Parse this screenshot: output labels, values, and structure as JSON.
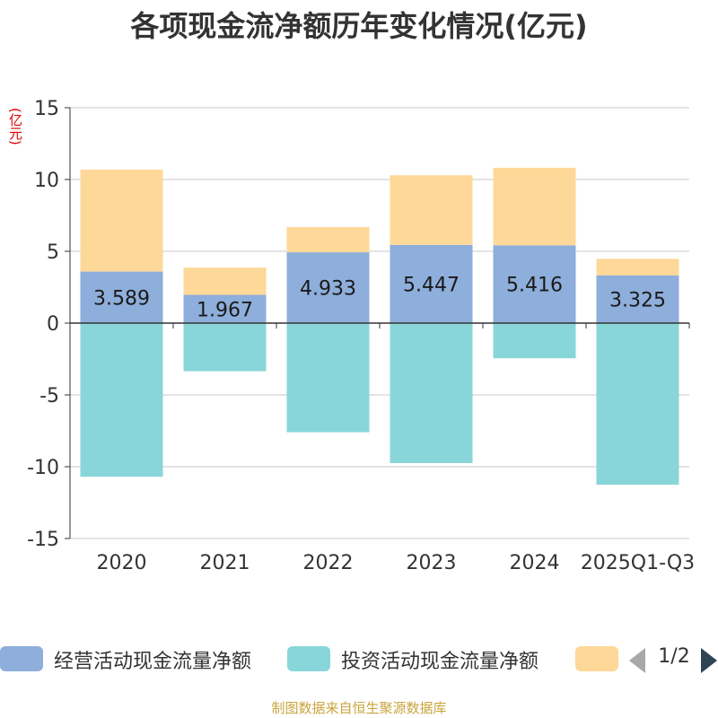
{
  "chart_data": {
    "type": "bar",
    "stacked": true,
    "title": "各项现金流净额历年变化情况(亿元)",
    "ylabel": "(亿元)",
    "xlabel": "",
    "categories": [
      "2020",
      "2021",
      "2022",
      "2023",
      "2024",
      "2025Q1-Q3"
    ],
    "ylim": [
      -15,
      15
    ],
    "yticks": [
      15,
      10,
      5,
      0,
      -5,
      -10,
      -15
    ],
    "grid": true,
    "legend_position": "bottom",
    "series": [
      {
        "name": "经营活动现金流量净额",
        "color": "#8eaedb",
        "values": [
          3.589,
          1.967,
          4.933,
          5.447,
          5.416,
          3.325
        ],
        "labels": [
          "3.589",
          "1.967",
          "4.933",
          "5.447",
          "5.416",
          "3.325"
        ],
        "show_labels": true
      },
      {
        "name": "投资活动现金流量净额",
        "color": "#88d6da",
        "values": [
          -10.7,
          -3.35,
          -7.6,
          -9.75,
          -2.45,
          -11.25
        ],
        "show_labels": false
      },
      {
        "name": "",
        "color": "#fdd898",
        "values": [
          7.1,
          1.9,
          1.75,
          4.85,
          5.4,
          1.15
        ],
        "show_labels": false
      }
    ]
  },
  "legend": {
    "pager_text": "1/2"
  },
  "footer": {
    "source": "制图数据来自恒生聚源数据库"
  }
}
